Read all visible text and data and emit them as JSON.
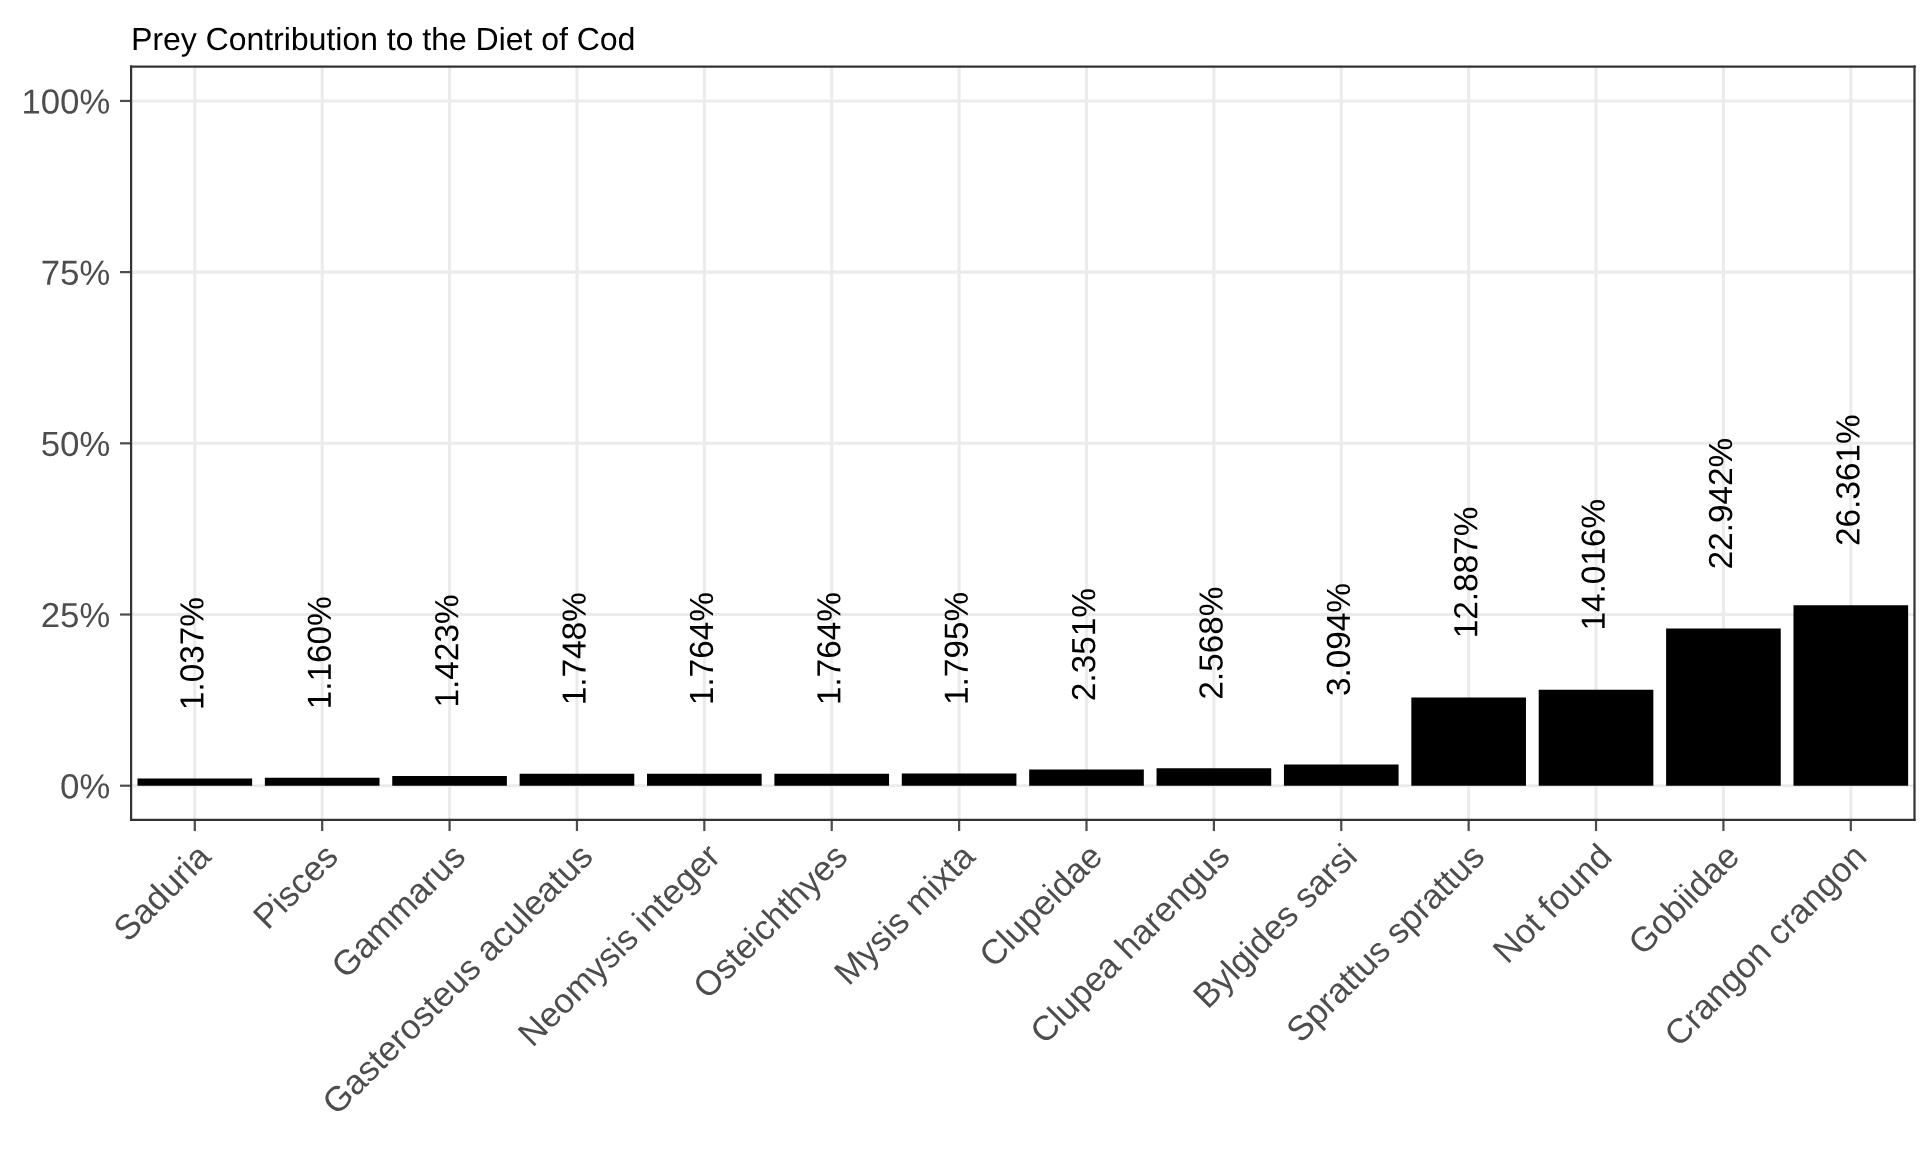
{
  "chart_data": {
    "type": "bar",
    "title": "Prey Contribution to the Diet of Cod",
    "categories": [
      "Saduria",
      "Pisces",
      "Gammarus",
      "Gasterosteus aculeatus",
      "Neomysis integer",
      "Osteichthyes",
      "Mysis mixta",
      "Clupeidae",
      "Clupea harengus",
      "Bylgides sarsi",
      "Sprattus sprattus",
      "Not found",
      "Gobiidae",
      "Crangon crangon"
    ],
    "values": [
      1.037,
      1.16,
      1.423,
      1.748,
      1.764,
      1.764,
      1.795,
      2.351,
      2.568,
      3.094,
      12.887,
      14.016,
      22.942,
      26.361
    ],
    "value_labels": [
      "1.037%",
      "1.160%",
      "1.423%",
      "1.748%",
      "1.764%",
      "1.764%",
      "1.795%",
      "2.351%",
      "2.568%",
      "3.094%",
      "12.887%",
      "14.016%",
      "22.942%",
      "26.361%"
    ],
    "color": "#000000",
    "ylim": [
      -5,
      105
    ],
    "yticks": [
      {
        "value": 0,
        "label": "0%"
      },
      {
        "value": 25,
        "label": "25%"
      },
      {
        "value": 50,
        "label": "50%"
      },
      {
        "value": 75,
        "label": "75%"
      },
      {
        "value": 100,
        "label": "100%"
      }
    ],
    "grid": true
  }
}
